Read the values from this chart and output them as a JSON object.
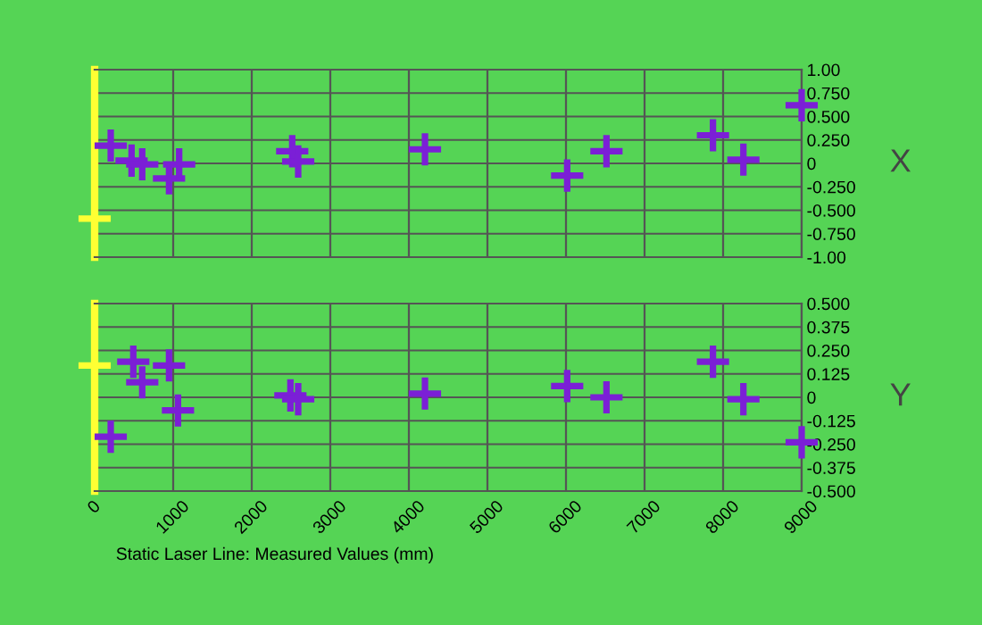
{
  "chart_data": [
    {
      "type": "scatter",
      "ylabel": "X",
      "xlim": [
        0,
        9000
      ],
      "ylim": [
        -1.0,
        1.0
      ],
      "tick_labels": "y",
      "grid": true,
      "marker": "cross",
      "yticks": [
        {
          "value": 1.0,
          "label": "1.00"
        },
        {
          "value": 0.75,
          "label": "0.750"
        },
        {
          "value": 0.5,
          "label": "0.500"
        },
        {
          "value": 0.25,
          "label": "0.250"
        },
        0,
        {
          "value": -0.25,
          "label": "-0.250"
        },
        {
          "value": -0.5,
          "label": "-0.500"
        },
        {
          "value": -0.75,
          "label": "-0.750"
        },
        {
          "value": -1.0,
          "label": "-1.00"
        }
      ],
      "xticks": [
        {
          "value": 0,
          "label": null
        },
        {
          "value": 1000,
          "label": null
        },
        {
          "value": 2000,
          "label": null
        },
        {
          "value": 3000,
          "label": null
        },
        {
          "value": 4000,
          "label": null
        },
        {
          "value": 5000,
          "label": null
        },
        {
          "value": 6000,
          "label": null
        },
        {
          "value": 7000,
          "label": null
        },
        {
          "value": 8000,
          "label": null
        },
        {
          "value": 9000,
          "label": null
        }
      ],
      "series": [
        {
          "color": "#7b1fd6",
          "x": [
            205,
            470,
            606,
            947,
            1076,
            2515,
            2591,
            4205,
            6015,
            6515,
            7871,
            8258,
            9000
          ],
          "values": [
            0.19,
            0.03,
            -0.01,
            -0.16,
            -0.01,
            0.13,
            0.02,
            0.15,
            -0.13,
            0.13,
            0.3,
            0.04,
            0.62
          ]
        },
        {
          "color": "#ffff33",
          "x": [
            0
          ],
          "values": [
            -0.59
          ]
        }
      ]
    },
    {
      "type": "scatter",
      "ylabel": "Y",
      "xlabel": "Static Laser Line: Measured Values (mm)",
      "xlim": [
        0,
        9000
      ],
      "ylim": [
        -0.5,
        0.5
      ],
      "grid": true,
      "marker": "cross",
      "yticks": [
        {
          "value": 0.5,
          "label": "0.500"
        },
        {
          "value": 0.375,
          "label": "0.375"
        },
        {
          "value": 0.25,
          "label": "0.250"
        },
        {
          "value": 0.125,
          "label": "0.125"
        },
        0,
        {
          "value": -0.125,
          "label": "-0.125"
        },
        {
          "value": -0.25,
          "label": "-0.250"
        },
        {
          "value": -0.375,
          "label": "-0.375"
        },
        {
          "value": -0.5,
          "label": "-0.500"
        }
      ],
      "xticks": [
        0,
        1000,
        2000,
        3000,
        4000,
        5000,
        6000,
        7000,
        8000,
        9000
      ],
      "series": [
        {
          "color": "#7b1fd6",
          "x": [
            205,
            492,
            606,
            947,
            1061,
            2492,
            2591,
            4205,
            6015,
            6515,
            7871,
            8258,
            9000
          ],
          "values": [
            -0.21,
            0.19,
            0.08,
            0.17,
            -0.07,
            0.01,
            -0.01,
            0.02,
            0.06,
            0.0,
            0.19,
            -0.01,
            -0.24
          ]
        },
        {
          "color": "#ffff33",
          "x": [
            0
          ],
          "values": [
            0.17
          ]
        }
      ]
    }
  ]
}
